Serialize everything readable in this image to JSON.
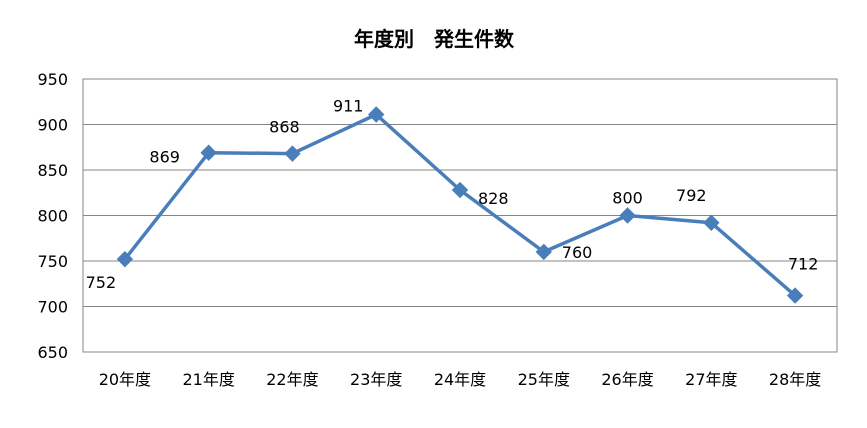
{
  "chart_data": {
    "type": "line",
    "title": "年度別　発生件数",
    "categories": [
      "20年度",
      "21年度",
      "22年度",
      "23年度",
      "24年度",
      "25年度",
      "26年度",
      "27年度",
      "28年度"
    ],
    "series": [
      {
        "values": [
          752,
          869,
          868,
          911,
          828,
          760,
          800,
          792,
          712
        ],
        "color": "#4A7EBB",
        "marker": "diamond"
      }
    ],
    "ylim": [
      650,
      950
    ],
    "yticks": [
      650,
      700,
      750,
      800,
      850,
      900,
      950
    ],
    "grid": true,
    "legend": "none",
    "data_labels": true
  }
}
